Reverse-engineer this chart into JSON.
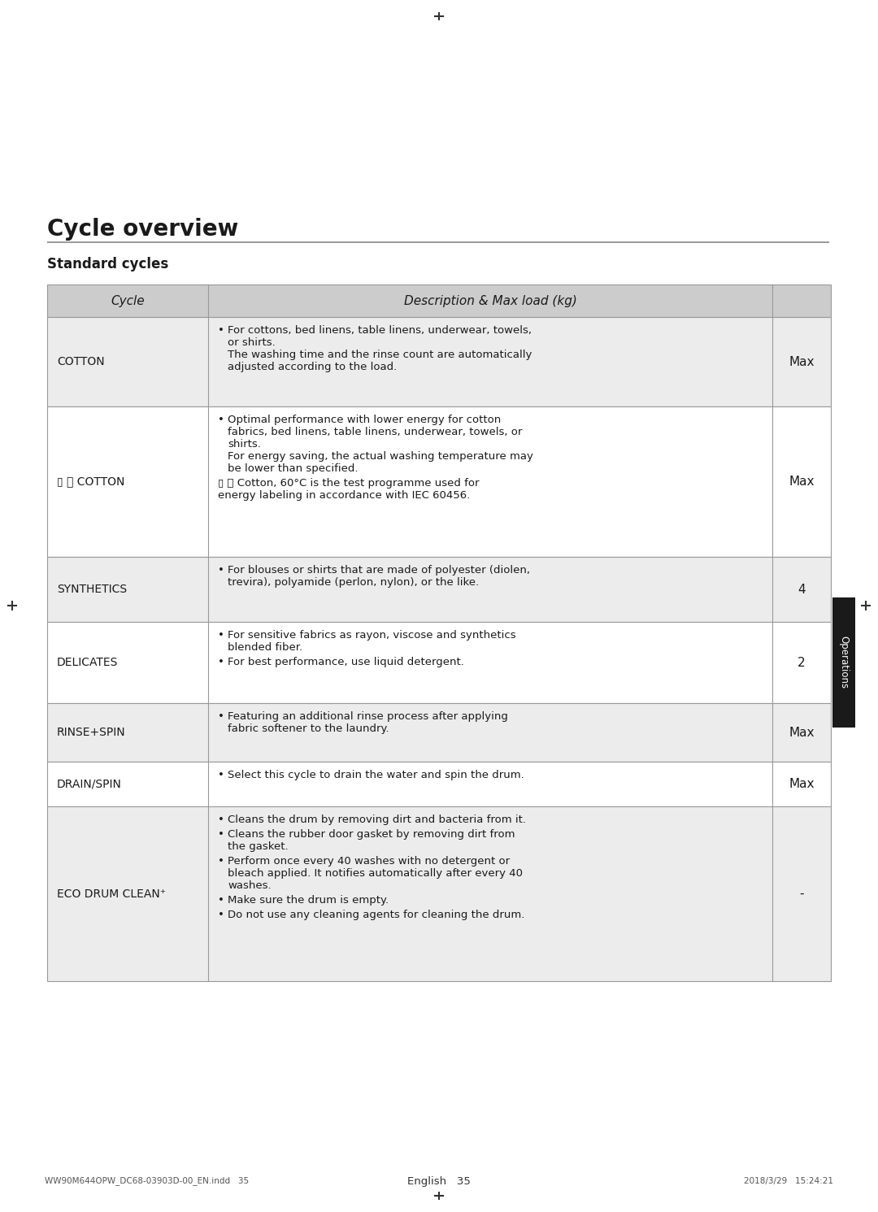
{
  "page_title": "Cycle overview",
  "section_title": "Standard cycles",
  "header_bg": "#cccccc",
  "row_bg_odd": "#ececec",
  "row_bg_even": "#ffffff",
  "border_color": "#999999",
  "text_color": "#1a1a1a",
  "header_text_color": "#1a1a1a",
  "col1_header": "Cycle",
  "col2_header": "Description & Max load (kg)",
  "sidebar_color": "#1a1a1a",
  "sidebar_text": "Operations",
  "footer_left": "WW90M644OPW_DC68-03903D-00_EN.indd   35",
  "footer_right": "2018/3/29   15:24:21",
  "footer_page": "English   35",
  "rows": [
    {
      "cycle": "COTTON",
      "description": [
        [
          "For cottons, bed linens, table linens, underwear, towels,\nor shirts.\nThe washing time and the rinse count are automatically\nadjusted according to the load."
        ]
      ],
      "max_load": "Max",
      "bullet": [
        true
      ]
    },
    {
      "cycle": "▯ ⓞ COTTON",
      "description": [
        [
          "Optimal performance with lower energy for cotton\nfabrics, bed linens, table linens, underwear, towels, or\nshirts.\nFor energy saving, the actual washing temperature may\nbe lower than specified."
        ],
        [
          "▯ ⓞ Cotton, 60°C is the test programme used for\nenergy labeling in accordance with IEC 60456."
        ]
      ],
      "max_load": "Max",
      "bullet": [
        true,
        false
      ]
    },
    {
      "cycle": "SYNTHETICS",
      "description": [
        [
          "For blouses or shirts that are made of polyester (diolen,\ntrevira), polyamide (perlon, nylon), or the like."
        ]
      ],
      "max_load": "4",
      "bullet": [
        true
      ]
    },
    {
      "cycle": "DELICATES",
      "description": [
        [
          "For sensitive fabrics as rayon, viscose and synthetics\nblended fiber."
        ],
        [
          "For best performance, use liquid detergent."
        ]
      ],
      "max_load": "2",
      "bullet": [
        true,
        true
      ]
    },
    {
      "cycle": "RINSE+SPIN",
      "description": [
        [
          "Featuring an additional rinse process after applying\nfabric softener to the laundry."
        ]
      ],
      "max_load": "Max",
      "bullet": [
        true
      ]
    },
    {
      "cycle": "DRAIN/SPIN",
      "description": [
        [
          "Select this cycle to drain the water and spin the drum."
        ]
      ],
      "max_load": "Max",
      "bullet": [
        true
      ]
    },
    {
      "cycle": "ECO DRUM CLEAN⁺",
      "description": [
        [
          "Cleans the drum by removing dirt and bacteria from it."
        ],
        [
          "Cleans the rubber door gasket by removing dirt from\nthe gasket."
        ],
        [
          "Perform once every 40 washes with no detergent or\nbleach applied. It notifies automatically after every 40\nwashes."
        ],
        [
          "Make sure the drum is empty."
        ],
        [
          "Do not use any cleaning agents for cleaning the drum."
        ]
      ],
      "max_load": "-",
      "bullet": [
        true,
        true,
        true,
        true,
        true
      ]
    }
  ]
}
